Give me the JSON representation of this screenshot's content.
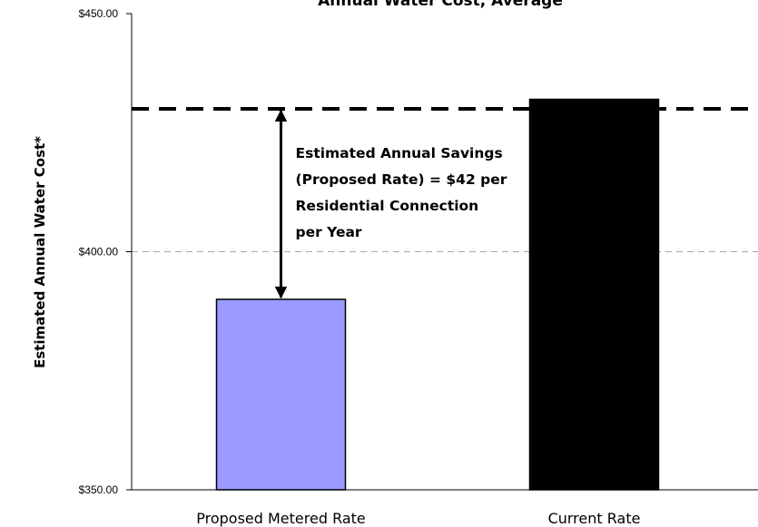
{
  "chart_data": {
    "type": "bar",
    "title": "Annual Water Cost, Average",
    "ylabel": "Estimated Annual Water Cost*",
    "xlabel": "",
    "categories": [
      "Proposed Metered Rate",
      "Current Rate"
    ],
    "values": [
      390,
      432
    ],
    "bar_colors": [
      "#9999ff",
      "#000000"
    ],
    "ylim": [
      350,
      450
    ],
    "yticks": [
      {
        "value": 350,
        "label": "$350.00"
      },
      {
        "value": 400,
        "label": "$400.00"
      },
      {
        "value": 450,
        "label": "$450.00"
      }
    ],
    "grid": true,
    "reference_line": {
      "value": 430,
      "style": "dashed",
      "color": "#000000"
    },
    "annotation": {
      "lines": [
        "Estimated Annual Savings",
        "(Proposed Rate) = $42 per",
        "Residential Connection",
        "per Year"
      ],
      "arrow_from": 430,
      "arrow_to": 390
    }
  }
}
